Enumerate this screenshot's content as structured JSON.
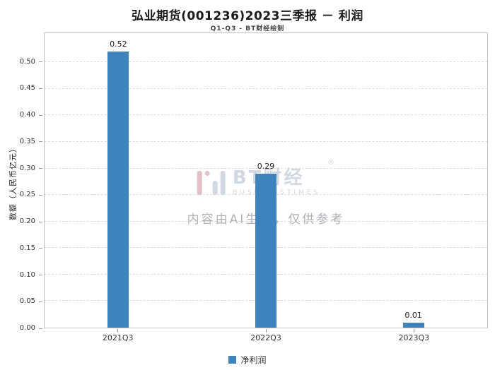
{
  "header": {
    "title": "弘业期货(001236)2023三季报 － 利润",
    "subtitle": "Q1-Q3 - BT财经绘制"
  },
  "chart_data": {
    "type": "bar",
    "categories": [
      "2021Q3",
      "2022Q3",
      "2023Q3"
    ],
    "values": [
      0.52,
      0.29,
      0.01
    ],
    "series": [
      {
        "name": "净利润",
        "values": [
          0.52,
          0.29,
          0.01
        ]
      }
    ],
    "title": "弘业期货(001236)2023三季报 － 利润",
    "subtitle": "Q1-Q3 - BT财经绘制",
    "xlabel": "",
    "ylabel": "数额（人民币亿元）",
    "ylim": [
      0,
      0.555
    ],
    "yticks": [
      0,
      0.05,
      0.1,
      0.15,
      0.2,
      0.25,
      0.3,
      0.35,
      0.4,
      0.45,
      0.5
    ],
    "grid": "dashed-horizontal",
    "legend_position": "bottom-center",
    "bar_color": "#3f83bd",
    "tick_label_format": "2-decimals"
  },
  "legend": {
    "label": "净利润"
  },
  "watermark": {
    "logo_text": "BT财经",
    "logo_sub": "BUSINESSTIMES",
    "reg": "®",
    "disclaimer": "内容由AI生成，仅供参考"
  }
}
